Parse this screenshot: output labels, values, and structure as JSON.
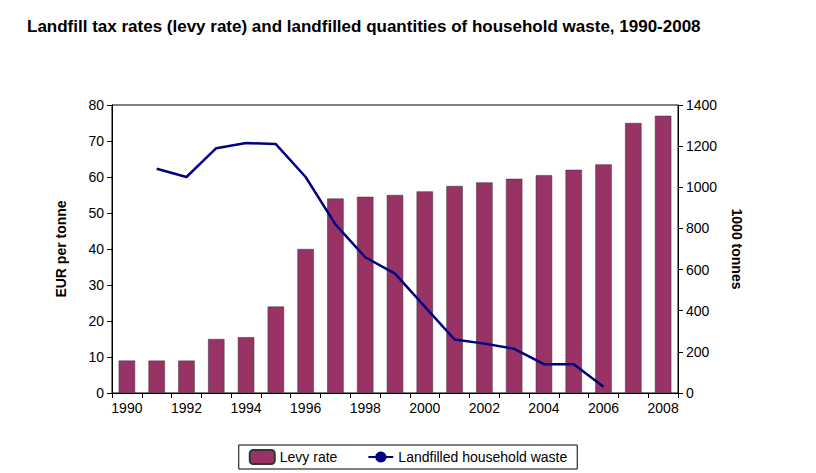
{
  "chart_data": {
    "type": "bar",
    "title": "Landfill tax rates (levy rate) and landfilled quantities of household waste, 1990-2008",
    "categories": [
      "1990",
      null,
      "1992",
      null,
      "1994",
      null,
      "1996",
      null,
      "1998",
      null,
      "2000",
      null,
      "2002",
      null,
      "2004",
      null,
      "2006",
      null,
      "2008"
    ],
    "ylabel": "EUR per tonne",
    "y2label": "1000 tonnes",
    "series": [
      {
        "name": "Levy rate",
        "type": "bar",
        "color": "#993366",
        "values": [
          9,
          9,
          9,
          15,
          15.5,
          24,
          40,
          54,
          54.5,
          55,
          56,
          57.5,
          58.5,
          59.5,
          60.5,
          62,
          63.5,
          75,
          77
        ]
      },
      {
        "name": "Landfilled household waste",
        "type": "line",
        "color": "#000080",
        "axis": "y2",
        "values": [
          null,
          1090,
          1050,
          1190,
          1215,
          1210,
          1050,
          820,
          660,
          580,
          420,
          260,
          240,
          215,
          140,
          140,
          30,
          null,
          null
        ]
      }
    ],
    "ylim": [
      0,
      80
    ],
    "yticks": [
      0,
      10,
      20,
      30,
      40,
      50,
      60,
      70,
      80
    ],
    "y2lim": [
      0,
      1400
    ],
    "y2ticks": [
      0,
      200,
      400,
      600,
      800,
      1000,
      1200,
      1400
    ],
    "grid": false,
    "legend": "bottom"
  }
}
